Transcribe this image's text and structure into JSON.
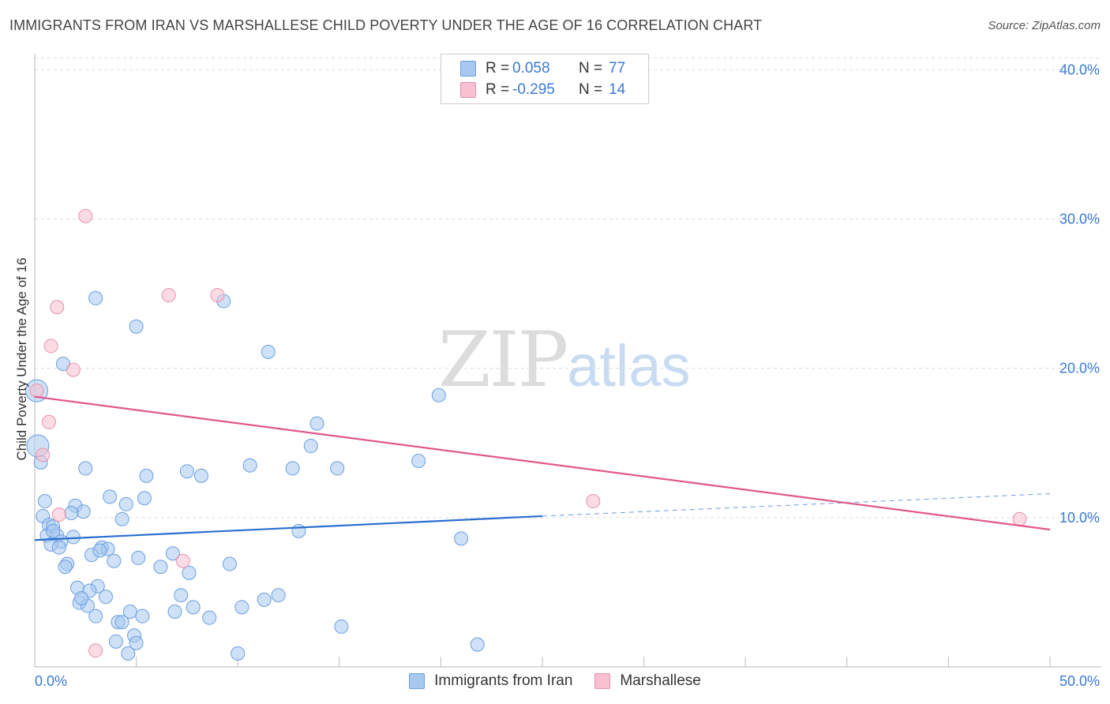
{
  "title": "IMMIGRANTS FROM IRAN VS MARSHALLESE CHILD POVERTY UNDER THE AGE OF 16 CORRELATION CHART",
  "source": "Source: ZipAtlas.com",
  "watermark": {
    "zip": "ZIP",
    "atlas": "atlas"
  },
  "legend": {
    "series1": {
      "r_label": "R =",
      "r_value": "0.058",
      "n_label": "N =",
      "n_value": "77"
    },
    "series2": {
      "r_label": "R =",
      "r_value": "-0.295",
      "n_label": "N =",
      "n_value": "14"
    }
  },
  "colors": {
    "blue_fill": "#a8c8f0",
    "blue_stroke": "#6a9fe0",
    "blue_line": "#2a6fd0",
    "pink_fill": "#f8c0d0",
    "pink_stroke": "#e890ad",
    "pink_line": "#e0588a",
    "tick_color": "#3b78d8"
  },
  "chart_data": {
    "type": "scatter",
    "title": "IMMIGRANTS FROM IRAN VS MARSHALLESE CHILD POVERTY UNDER THE AGE OF 16 CORRELATION CHART",
    "xlabel": "",
    "ylabel": "Child Poverty Under the Age of 16",
    "xlim": [
      0,
      50
    ],
    "ylim": [
      0,
      41.5
    ],
    "x_tick_labels": [
      {
        "value": 0,
        "label": "0.0%"
      },
      {
        "value": 50,
        "label": "50.0%"
      }
    ],
    "y_tick_labels": [
      {
        "value": 10,
        "label": "10.0%"
      },
      {
        "value": 20,
        "label": "20.0%"
      },
      {
        "value": 30,
        "label": "30.0%"
      },
      {
        "value": 40,
        "label": "40.0%"
      }
    ],
    "y_gridlines": [
      10,
      20,
      30,
      40,
      40.8
    ],
    "x_minor_ticks": [
      0,
      5,
      10,
      15,
      20,
      25,
      30,
      35,
      40,
      45,
      50
    ],
    "series": [
      {
        "name": "Immigrants from Iran",
        "color": "#a8c8f0",
        "points": [
          {
            "x": 0.1,
            "y": 18.5,
            "big": true
          },
          {
            "x": 0.15,
            "y": 14.8,
            "big": true
          },
          {
            "x": 0.3,
            "y": 13.7
          },
          {
            "x": 1.4,
            "y": 20.3
          },
          {
            "x": 3.0,
            "y": 24.7
          },
          {
            "x": 5.0,
            "y": 22.8
          },
          {
            "x": 9.3,
            "y": 24.5
          },
          {
            "x": 11.5,
            "y": 21.1
          },
          {
            "x": 19.9,
            "y": 18.2
          },
          {
            "x": 13.9,
            "y": 16.3
          },
          {
            "x": 13.6,
            "y": 14.8
          },
          {
            "x": 18.9,
            "y": 13.8
          },
          {
            "x": 10.6,
            "y": 13.5
          },
          {
            "x": 12.7,
            "y": 13.3
          },
          {
            "x": 14.9,
            "y": 13.3
          },
          {
            "x": 2.5,
            "y": 13.3
          },
          {
            "x": 7.5,
            "y": 13.1
          },
          {
            "x": 8.2,
            "y": 12.8
          },
          {
            "x": 5.5,
            "y": 12.8
          },
          {
            "x": 0.5,
            "y": 11.1
          },
          {
            "x": 3.7,
            "y": 11.4
          },
          {
            "x": 5.4,
            "y": 11.3
          },
          {
            "x": 4.5,
            "y": 10.9
          },
          {
            "x": 2.0,
            "y": 10.8
          },
          {
            "x": 2.4,
            "y": 10.4
          },
          {
            "x": 1.8,
            "y": 10.3
          },
          {
            "x": 0.4,
            "y": 10.1
          },
          {
            "x": 4.3,
            "y": 9.9
          },
          {
            "x": 0.7,
            "y": 9.5
          },
          {
            "x": 0.9,
            "y": 9.4
          },
          {
            "x": 13.0,
            "y": 9.1
          },
          {
            "x": 21.0,
            "y": 8.6
          },
          {
            "x": 0.6,
            "y": 8.8
          },
          {
            "x": 1.1,
            "y": 8.8
          },
          {
            "x": 1.9,
            "y": 8.7
          },
          {
            "x": 1.3,
            "y": 8.4
          },
          {
            "x": 0.8,
            "y": 8.2
          },
          {
            "x": 1.2,
            "y": 8.0
          },
          {
            "x": 3.3,
            "y": 8.0
          },
          {
            "x": 3.6,
            "y": 7.9
          },
          {
            "x": 2.8,
            "y": 7.5
          },
          {
            "x": 6.8,
            "y": 7.6
          },
          {
            "x": 5.1,
            "y": 7.3
          },
          {
            "x": 3.9,
            "y": 7.1
          },
          {
            "x": 1.6,
            "y": 6.9
          },
          {
            "x": 9.6,
            "y": 6.9
          },
          {
            "x": 6.2,
            "y": 6.7
          },
          {
            "x": 1.5,
            "y": 6.7
          },
          {
            "x": 7.6,
            "y": 6.3
          },
          {
            "x": 3.1,
            "y": 5.4
          },
          {
            "x": 2.1,
            "y": 5.3
          },
          {
            "x": 2.7,
            "y": 5.1
          },
          {
            "x": 7.2,
            "y": 4.8
          },
          {
            "x": 3.5,
            "y": 4.7
          },
          {
            "x": 12.0,
            "y": 4.8
          },
          {
            "x": 11.3,
            "y": 4.5
          },
          {
            "x": 2.2,
            "y": 4.3
          },
          {
            "x": 2.6,
            "y": 4.1
          },
          {
            "x": 7.8,
            "y": 4.0
          },
          {
            "x": 10.2,
            "y": 4.0
          },
          {
            "x": 4.7,
            "y": 3.7
          },
          {
            "x": 6.9,
            "y": 3.7
          },
          {
            "x": 3.0,
            "y": 3.4
          },
          {
            "x": 5.3,
            "y": 3.4
          },
          {
            "x": 8.6,
            "y": 3.3
          },
          {
            "x": 4.1,
            "y": 3.0
          },
          {
            "x": 4.3,
            "y": 3.0
          },
          {
            "x": 15.1,
            "y": 2.7
          },
          {
            "x": 4.9,
            "y": 2.1
          },
          {
            "x": 4.0,
            "y": 1.7
          },
          {
            "x": 5.0,
            "y": 1.6
          },
          {
            "x": 21.8,
            "y": 1.5
          },
          {
            "x": 4.6,
            "y": 0.9
          },
          {
            "x": 10.0,
            "y": 0.9
          },
          {
            "x": 2.3,
            "y": 4.6
          },
          {
            "x": 0.9,
            "y": 9.1
          },
          {
            "x": 3.2,
            "y": 7.8
          }
        ]
      },
      {
        "name": "Marshallese",
        "color": "#f8c0d0",
        "points": [
          {
            "x": 2.5,
            "y": 30.2
          },
          {
            "x": 1.1,
            "y": 24.1
          },
          {
            "x": 6.6,
            "y": 24.9
          },
          {
            "x": 9.0,
            "y": 24.9
          },
          {
            "x": 0.8,
            "y": 21.5
          },
          {
            "x": 1.9,
            "y": 19.9
          },
          {
            "x": 0.1,
            "y": 18.5
          },
          {
            "x": 0.7,
            "y": 16.4
          },
          {
            "x": 0.4,
            "y": 14.2
          },
          {
            "x": 1.2,
            "y": 10.2
          },
          {
            "x": 27.5,
            "y": 11.1
          },
          {
            "x": 48.5,
            "y": 9.9
          },
          {
            "x": 7.3,
            "y": 7.1
          },
          {
            "x": 3.0,
            "y": 1.1
          }
        ]
      }
    ],
    "trendlines": [
      {
        "series": "Immigrants from Iran",
        "x": [
          0,
          25
        ],
        "y": [
          8.5,
          10.1
        ],
        "dashed_extension": {
          "x": [
            25,
            50
          ],
          "y": [
            10.1,
            11.6
          ]
        }
      },
      {
        "series": "Marshallese",
        "x": [
          0,
          50
        ],
        "y": [
          18.1,
          9.2
        ]
      }
    ]
  }
}
